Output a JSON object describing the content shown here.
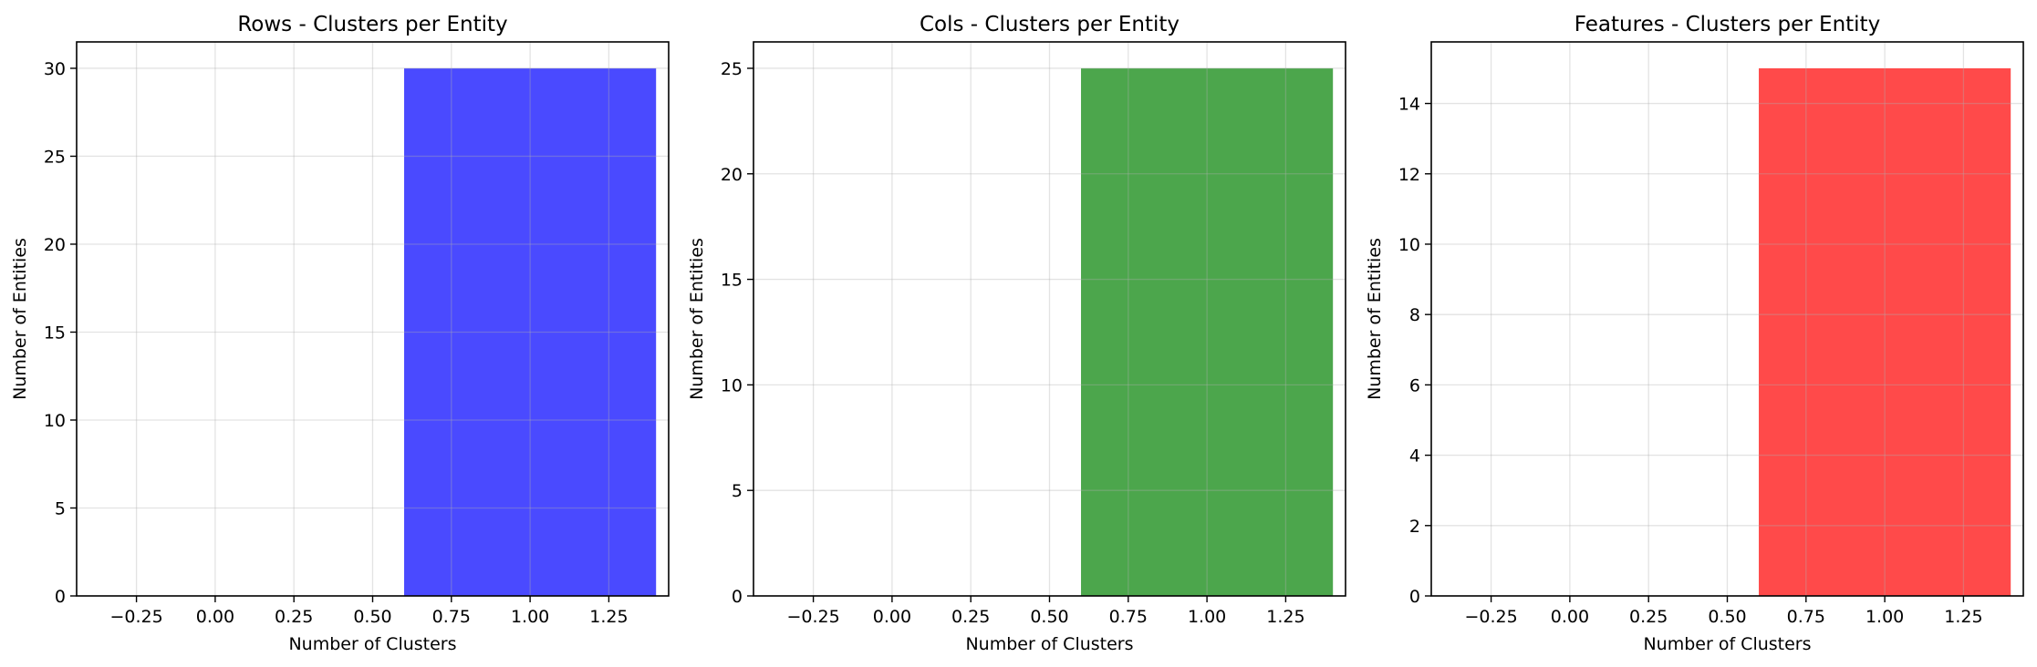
{
  "chart_data": [
    {
      "type": "bar",
      "title": "Rows - Clusters per Entity",
      "xlabel": "Number of Clusters",
      "ylabel": "Number of Entities",
      "bars": [
        {
          "x": 1,
          "width": 0.8,
          "value": 30
        }
      ],
      "xlim": [
        -0.44,
        1.44
      ],
      "ylim": [
        0,
        31.5
      ],
      "xticks": [
        -0.25,
        0.0,
        0.25,
        0.5,
        0.75,
        1.0,
        1.25
      ],
      "xtick_labels": [
        "−0.25",
        "0.00",
        "0.25",
        "0.50",
        "0.75",
        "1.00",
        "1.25"
      ],
      "yticks": [
        0,
        5,
        10,
        15,
        20,
        25,
        30
      ],
      "ytick_labels": [
        "0",
        "5",
        "10",
        "15",
        "20",
        "25",
        "30"
      ],
      "color": "#4a4aff",
      "grid": true
    },
    {
      "type": "bar",
      "title": "Cols - Clusters per Entity",
      "xlabel": "Number of Clusters",
      "ylabel": "Number of Entities",
      "bars": [
        {
          "x": 1,
          "width": 0.8,
          "value": 25
        }
      ],
      "xlim": [
        -0.44,
        1.44
      ],
      "ylim": [
        0,
        26.25
      ],
      "xticks": [
        -0.25,
        0.0,
        0.25,
        0.5,
        0.75,
        1.0,
        1.25
      ],
      "xtick_labels": [
        "−0.25",
        "0.00",
        "0.25",
        "0.50",
        "0.75",
        "1.00",
        "1.25"
      ],
      "yticks": [
        0,
        5,
        10,
        15,
        20,
        25
      ],
      "ytick_labels": [
        "0",
        "5",
        "10",
        "15",
        "20",
        "25"
      ],
      "color": "#4ca64c",
      "grid": true
    },
    {
      "type": "bar",
      "title": "Features - Clusters per Entity",
      "xlabel": "Number of Clusters",
      "ylabel": "Number of Entities",
      "bars": [
        {
          "x": 1,
          "width": 0.8,
          "value": 15
        }
      ],
      "xlim": [
        -0.44,
        1.44
      ],
      "ylim": [
        0,
        15.75
      ],
      "xticks": [
        -0.25,
        0.0,
        0.25,
        0.5,
        0.75,
        1.0,
        1.25
      ],
      "xtick_labels": [
        "−0.25",
        "0.00",
        "0.25",
        "0.50",
        "0.75",
        "1.00",
        "1.25"
      ],
      "yticks": [
        0,
        2,
        4,
        6,
        8,
        10,
        12,
        14
      ],
      "ytick_labels": [
        "0",
        "2",
        "4",
        "6",
        "8",
        "10",
        "12",
        "14"
      ],
      "color": "#ff4a4a",
      "grid": true
    }
  ]
}
